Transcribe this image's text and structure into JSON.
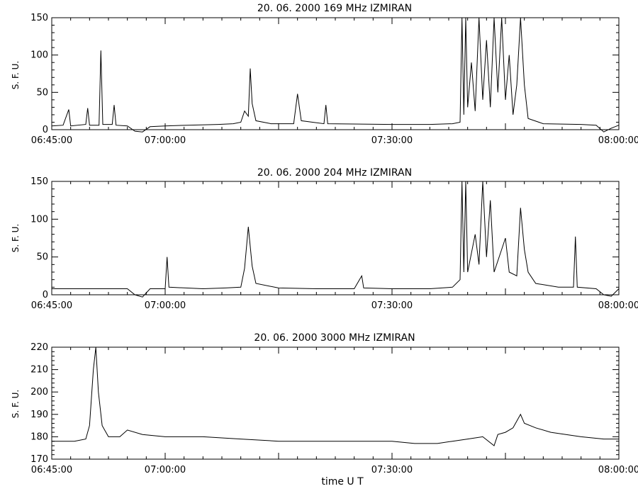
{
  "chart_data": [
    {
      "type": "line",
      "title": "20.  06.  2000    169  MHz    IZMIRAN",
      "ylabel": "S. F. U.",
      "xlabel": "",
      "xlim": [
        "06:45:00",
        "08:00:00"
      ],
      "x_ticks": [
        "06:45:00",
        "07:00:00",
        "07:30:00",
        "08:00:00"
      ],
      "ylim": [
        0,
        150
      ],
      "y_ticks": [
        0,
        50,
        100,
        150
      ],
      "grid": false,
      "series": [
        {
          "values": [
            [
              "06:45:00",
              5
            ],
            [
              "06:46:30",
              6
            ],
            [
              "06:47:15",
              27
            ],
            [
              "06:47:30",
              5
            ],
            [
              "06:49:30",
              7
            ],
            [
              "06:49:45",
              29
            ],
            [
              "06:50:00",
              6
            ],
            [
              "06:51:15",
              6
            ],
            [
              "06:51:30",
              106
            ],
            [
              "06:51:45",
              7
            ],
            [
              "06:53:00",
              7
            ],
            [
              "06:53:15",
              33
            ],
            [
              "06:53:30",
              6
            ],
            [
              "06:55:00",
              5
            ],
            [
              "06:56:00",
              -2
            ],
            [
              "06:57:00",
              -3
            ],
            [
              "06:58:00",
              4
            ],
            [
              "07:00:00",
              5
            ],
            [
              "07:03:00",
              6
            ],
            [
              "07:07:00",
              7
            ],
            [
              "07:09:00",
              8
            ],
            [
              "07:10:00",
              10
            ],
            [
              "07:10:30",
              25
            ],
            [
              "07:11:00",
              18
            ],
            [
              "07:11:15",
              82
            ],
            [
              "07:11:30",
              35
            ],
            [
              "07:12:00",
              12
            ],
            [
              "07:14:00",
              8
            ],
            [
              "07:17:00",
              8
            ],
            [
              "07:17:30",
              48
            ],
            [
              "07:18:00",
              12
            ],
            [
              "07:21:00",
              8
            ],
            [
              "07:21:15",
              33
            ],
            [
              "07:21:30",
              8
            ],
            [
              "07:30:00",
              7
            ],
            [
              "07:35:00",
              7
            ],
            [
              "07:38:00",
              8
            ],
            [
              "07:39:00",
              10
            ],
            [
              "07:39:15",
              150
            ],
            [
              "07:39:30",
              20
            ],
            [
              "07:39:45",
              150
            ],
            [
              "07:40:00",
              30
            ],
            [
              "07:40:30",
              90
            ],
            [
              "07:41:00",
              25
            ],
            [
              "07:41:30",
              150
            ],
            [
              "07:42:00",
              40
            ],
            [
              "07:42:30",
              120
            ],
            [
              "07:43:00",
              30
            ],
            [
              "07:43:30",
              150
            ],
            [
              "07:44:00",
              50
            ],
            [
              "07:44:30",
              150
            ],
            [
              "07:45:00",
              40
            ],
            [
              "07:45:30",
              100
            ],
            [
              "07:46:00",
              20
            ],
            [
              "07:46:30",
              60
            ],
            [
              "07:47:00",
              150
            ],
            [
              "07:47:30",
              60
            ],
            [
              "07:48:00",
              15
            ],
            [
              "07:50:00",
              8
            ],
            [
              "07:55:00",
              7
            ],
            [
              "07:57:00",
              6
            ],
            [
              "07:58:00",
              -3
            ],
            [
              "07:59:00",
              2
            ],
            [
              "08:00:00",
              6
            ]
          ]
        }
      ]
    },
    {
      "type": "line",
      "title": "20.  06.  2000    204  MHz    IZMIRAN",
      "ylabel": "S. F. U.",
      "xlabel": "",
      "xlim": [
        "06:45:00",
        "08:00:00"
      ],
      "x_ticks": [
        "06:45:00",
        "07:00:00",
        "07:30:00",
        "08:00:00"
      ],
      "ylim": [
        0,
        150
      ],
      "y_ticks": [
        0,
        50,
        100,
        150
      ],
      "grid": false,
      "series": [
        {
          "values": [
            [
              "06:45:00",
              8
            ],
            [
              "06:50:00",
              8
            ],
            [
              "06:55:00",
              8
            ],
            [
              "06:56:00",
              0
            ],
            [
              "06:57:00",
              -3
            ],
            [
              "06:58:00",
              8
            ],
            [
              "07:00:00",
              8
            ],
            [
              "07:00:15",
              50
            ],
            [
              "07:00:30",
              10
            ],
            [
              "07:05:00",
              8
            ],
            [
              "07:08:00",
              9
            ],
            [
              "07:10:00",
              10
            ],
            [
              "07:10:30",
              35
            ],
            [
              "07:11:00",
              90
            ],
            [
              "07:11:30",
              38
            ],
            [
              "07:12:00",
              15
            ],
            [
              "07:15:00",
              9
            ],
            [
              "07:20:00",
              8
            ],
            [
              "07:25:00",
              8
            ],
            [
              "07:26:00",
              25
            ],
            [
              "07:26:15",
              9
            ],
            [
              "07:30:00",
              8
            ],
            [
              "07:35:00",
              8
            ],
            [
              "07:38:00",
              10
            ],
            [
              "07:39:00",
              20
            ],
            [
              "07:39:15",
              150
            ],
            [
              "07:39:30",
              30
            ],
            [
              "07:39:45",
              150
            ],
            [
              "07:40:00",
              30
            ],
            [
              "07:41:00",
              80
            ],
            [
              "07:41:30",
              40
            ],
            [
              "07:42:00",
              150
            ],
            [
              "07:42:30",
              50
            ],
            [
              "07:43:00",
              125
            ],
            [
              "07:43:30",
              30
            ],
            [
              "07:44:30",
              60
            ],
            [
              "07:45:00",
              75
            ],
            [
              "07:45:30",
              30
            ],
            [
              "07:46:30",
              25
            ],
            [
              "07:47:00",
              115
            ],
            [
              "07:47:30",
              60
            ],
            [
              "07:48:00",
              30
            ],
            [
              "07:49:00",
              15
            ],
            [
              "07:52:00",
              10
            ],
            [
              "07:54:00",
              10
            ],
            [
              "07:54:15",
              77
            ],
            [
              "07:54:30",
              10
            ],
            [
              "07:57:00",
              8
            ],
            [
              "07:58:00",
              0
            ],
            [
              "07:59:00",
              -2
            ],
            [
              "08:00:00",
              8
            ]
          ]
        }
      ]
    },
    {
      "type": "line",
      "title": "20.  06.  2000    3000  MHz    IZMIRAN",
      "ylabel": "S. F. U.",
      "xlabel": "time   U T",
      "xlim": [
        "06:45:00",
        "08:00:00"
      ],
      "x_ticks": [
        "06:45:00",
        "07:00:00",
        "07:30:00",
        "08:00:00"
      ],
      "ylim": [
        170,
        220
      ],
      "y_ticks": [
        170,
        180,
        190,
        200,
        210,
        220
      ],
      "grid": false,
      "series": [
        {
          "values": [
            [
              "06:45:00",
              178
            ],
            [
              "06:48:00",
              178
            ],
            [
              "06:49:30",
              179
            ],
            [
              "06:50:00",
              185
            ],
            [
              "06:50:30",
              210
            ],
            [
              "06:50:50",
              220
            ],
            [
              "06:51:10",
              200
            ],
            [
              "06:51:40",
              185
            ],
            [
              "06:52:30",
              180
            ],
            [
              "06:54:00",
              180
            ],
            [
              "06:55:00",
              183
            ],
            [
              "06:57:00",
              181
            ],
            [
              "07:00:00",
              180
            ],
            [
              "07:05:00",
              180
            ],
            [
              "07:10:00",
              179
            ],
            [
              "07:15:00",
              178
            ],
            [
              "07:20:00",
              178
            ],
            [
              "07:25:00",
              178
            ],
            [
              "07:30:00",
              178
            ],
            [
              "07:33:00",
              177
            ],
            [
              "07:36:00",
              177
            ],
            [
              "07:38:00",
              178
            ],
            [
              "07:40:00",
              179
            ],
            [
              "07:42:00",
              180
            ],
            [
              "07:43:30",
              176
            ],
            [
              "07:44:00",
              181
            ],
            [
              "07:45:00",
              182
            ],
            [
              "07:46:00",
              184
            ],
            [
              "07:46:30",
              187
            ],
            [
              "07:47:00",
              190
            ],
            [
              "07:47:30",
              186
            ],
            [
              "07:49:00",
              184
            ],
            [
              "07:51:00",
              182
            ],
            [
              "07:53:00",
              181
            ],
            [
              "07:55:00",
              180
            ],
            [
              "07:58:00",
              179
            ],
            [
              "08:00:00",
              179
            ]
          ]
        }
      ]
    }
  ]
}
